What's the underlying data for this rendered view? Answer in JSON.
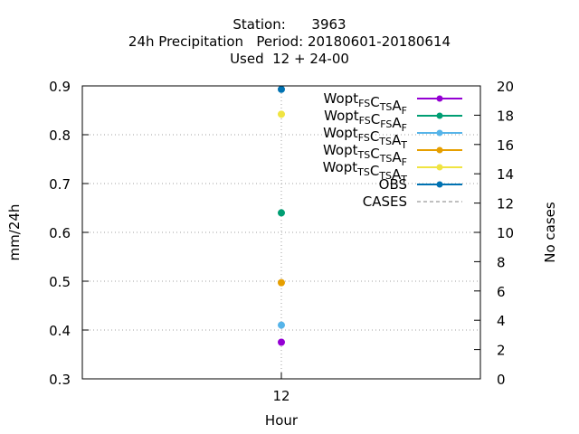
{
  "header": {
    "line1": "Station:      3963",
    "line2": "24h Precipitation   Period: 20180601-20180614",
    "line3": "Used  12 + 24-00"
  },
  "chart_data": {
    "type": "scatter",
    "xlabel": "Hour",
    "ylabel": "mm/24h",
    "y2label": "No cases",
    "categories": [
      "12"
    ],
    "ylim": [
      0.3,
      0.9
    ],
    "y2lim": [
      0,
      20
    ],
    "yticks": [
      "0.3",
      "0.4",
      "0.5",
      "0.6",
      "0.7",
      "0.8",
      "0.9"
    ],
    "y2ticks": [
      "0",
      "2",
      "4",
      "6",
      "8",
      "10",
      "12",
      "14",
      "16",
      "18",
      "20"
    ],
    "grid": true,
    "legend_position": "top-right",
    "series": [
      {
        "name_parts": [
          [
            "Wopt",
            ""
          ],
          [
            "FS",
            "sub"
          ],
          [
            "C",
            ""
          ],
          [
            "TS",
            "sub"
          ],
          [
            "A",
            ""
          ],
          [
            "F",
            "sub"
          ]
        ],
        "color": "#9400d3",
        "values": [
          0.375
        ]
      },
      {
        "name_parts": [
          [
            "Wopt",
            ""
          ],
          [
            "FS",
            "sub"
          ],
          [
            "C",
            ""
          ],
          [
            "FS",
            "sub"
          ],
          [
            "A",
            ""
          ],
          [
            "F",
            "sub"
          ]
        ],
        "color": "#009e73",
        "values": [
          0.64
        ]
      },
      {
        "name_parts": [
          [
            "Wopt",
            ""
          ],
          [
            "FS",
            "sub"
          ],
          [
            "C",
            ""
          ],
          [
            "TS",
            "sub"
          ],
          [
            "A",
            ""
          ],
          [
            "T",
            "sub"
          ]
        ],
        "color": "#56b4e9",
        "values": [
          0.41
        ]
      },
      {
        "name_parts": [
          [
            "Wopt",
            ""
          ],
          [
            "TS",
            "sub"
          ],
          [
            "C",
            ""
          ],
          [
            "TS",
            "sub"
          ],
          [
            "A",
            ""
          ],
          [
            "F",
            "sub"
          ]
        ],
        "color": "#e69f00",
        "values": [
          0.497
        ]
      },
      {
        "name_parts": [
          [
            "Wopt",
            ""
          ],
          [
            "TS",
            "sub"
          ],
          [
            "C",
            ""
          ],
          [
            "TS",
            "sub"
          ],
          [
            "A",
            ""
          ],
          [
            "T",
            "sub"
          ]
        ],
        "color": "#f0e442",
        "values": [
          0.842
        ]
      },
      {
        "name_parts": [
          [
            "OBS",
            ""
          ]
        ],
        "color": "#0072b2",
        "values": [
          0.893
        ]
      },
      {
        "name_parts": [
          [
            "CASES",
            ""
          ]
        ],
        "color": "#808080",
        "dashed": true,
        "values": []
      }
    ]
  }
}
